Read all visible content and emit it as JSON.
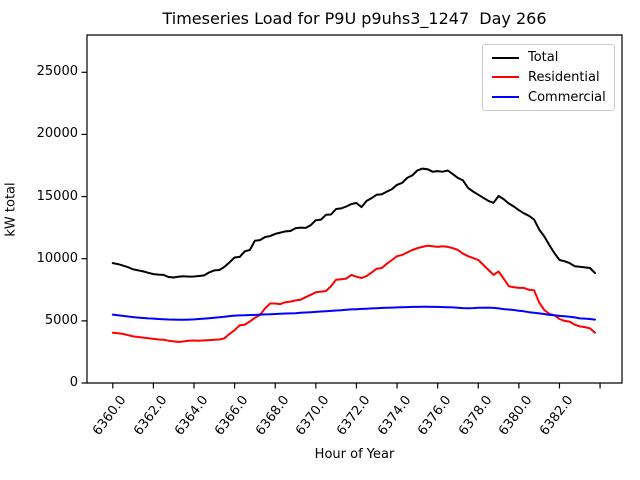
{
  "chart": {
    "title": "Timeseries Load for P9U p9uhs3_1247  Day 266",
    "xlabel": "Hour of Year",
    "ylabel": "kW total"
  },
  "chart_data": {
    "type": "line",
    "title": "Timeseries Load for P9U p9uhs3_1247  Day 266",
    "xlabel": "Hour of Year",
    "ylabel": "kW total",
    "grid": false,
    "legend_position": "upper right",
    "xlim": [
      6358.73,
      6385.08
    ],
    "ylim": [
      0,
      28000
    ],
    "xticks": [
      6360,
      6362,
      6364,
      6366,
      6368,
      6370,
      6372,
      6374,
      6376,
      6378,
      6380,
      6382,
      6384
    ],
    "xtick_labels": [
      "6360.0",
      "6362.0",
      "6364.0",
      "6366.0",
      "6368.0",
      "6370.0",
      "6372.0",
      "6374.0",
      "6376.0",
      "6378.0",
      "6380.0",
      "6382.0",
      ""
    ],
    "yticks": [
      0,
      5000,
      10000,
      15000,
      20000,
      25000
    ],
    "ytick_labels": [
      "0",
      "5000",
      "10000",
      "15000",
      "20000",
      "25000"
    ],
    "x_start": 6360.0,
    "x_step": 0.25,
    "x_end": 6383.75,
    "series": [
      {
        "name": "Total",
        "color": "#000000",
        "values": [
          9650,
          9570,
          9450,
          9320,
          9150,
          9060,
          8980,
          8870,
          8760,
          8720,
          8700,
          8530,
          8490,
          8560,
          8590,
          8560,
          8570,
          8610,
          8660,
          8900,
          9060,
          9090,
          9350,
          9700,
          10100,
          10150,
          10600,
          10700,
          11450,
          11500,
          11750,
          11820,
          12000,
          12100,
          12200,
          12230,
          12450,
          12500,
          12480,
          12700,
          13100,
          13150,
          13530,
          13560,
          14000,
          14050,
          14200,
          14400,
          14480,
          14150,
          14650,
          14880,
          15150,
          15180,
          15400,
          15600,
          15950,
          16100,
          16500,
          16700,
          17100,
          17250,
          17200,
          17000,
          17050,
          17000,
          17100,
          16800,
          16500,
          16300,
          15700,
          15400,
          15150,
          14900,
          14650,
          14500,
          15050,
          14800,
          14450,
          14200,
          13900,
          13650,
          13450,
          13150,
          12350,
          11800,
          11100,
          10450,
          9900,
          9800,
          9650,
          9400,
          9350,
          9300,
          9250,
          8850
        ]
      },
      {
        "name": "Residential",
        "color": "#ff0000",
        "values": [
          4050,
          4000,
          3950,
          3850,
          3750,
          3700,
          3650,
          3600,
          3550,
          3500,
          3480,
          3400,
          3350,
          3300,
          3350,
          3400,
          3420,
          3400,
          3430,
          3450,
          3480,
          3500,
          3600,
          3950,
          4250,
          4650,
          4700,
          4950,
          5250,
          5480,
          6000,
          6400,
          6400,
          6350,
          6500,
          6550,
          6650,
          6700,
          6900,
          7100,
          7300,
          7350,
          7400,
          7800,
          8300,
          8350,
          8400,
          8700,
          8550,
          8450,
          8600,
          8900,
          9200,
          9250,
          9600,
          9900,
          10200,
          10300,
          10500,
          10700,
          10850,
          10950,
          11050,
          11000,
          10950,
          11000,
          10950,
          10850,
          10700,
          10400,
          10200,
          10050,
          9900,
          9500,
          9100,
          8700,
          8970,
          8400,
          7800,
          7700,
          7650,
          7650,
          7500,
          7450,
          6470,
          5880,
          5560,
          5450,
          5150,
          5000,
          4940,
          4700,
          4550,
          4500,
          4400,
          4050
        ]
      },
      {
        "name": "Commercial",
        "color": "#0000ff",
        "values": [
          5500,
          5450,
          5400,
          5350,
          5300,
          5260,
          5230,
          5200,
          5180,
          5150,
          5130,
          5110,
          5100,
          5090,
          5090,
          5100,
          5120,
          5150,
          5180,
          5210,
          5250,
          5290,
          5330,
          5380,
          5420,
          5440,
          5450,
          5470,
          5480,
          5500,
          5520,
          5530,
          5550,
          5570,
          5590,
          5600,
          5620,
          5650,
          5670,
          5700,
          5720,
          5750,
          5780,
          5800,
          5830,
          5860,
          5890,
          5920,
          5940,
          5960,
          5980,
          6000,
          6020,
          6040,
          6050,
          6070,
          6080,
          6100,
          6110,
          6120,
          6120,
          6130,
          6130,
          6120,
          6120,
          6110,
          6100,
          6080,
          6050,
          6030,
          6020,
          6030,
          6050,
          6060,
          6070,
          6040,
          6000,
          5950,
          5910,
          5870,
          5820,
          5770,
          5700,
          5650,
          5600,
          5550,
          5480,
          5450,
          5400,
          5370,
          5330,
          5280,
          5200,
          5180,
          5150,
          5100
        ]
      }
    ]
  }
}
